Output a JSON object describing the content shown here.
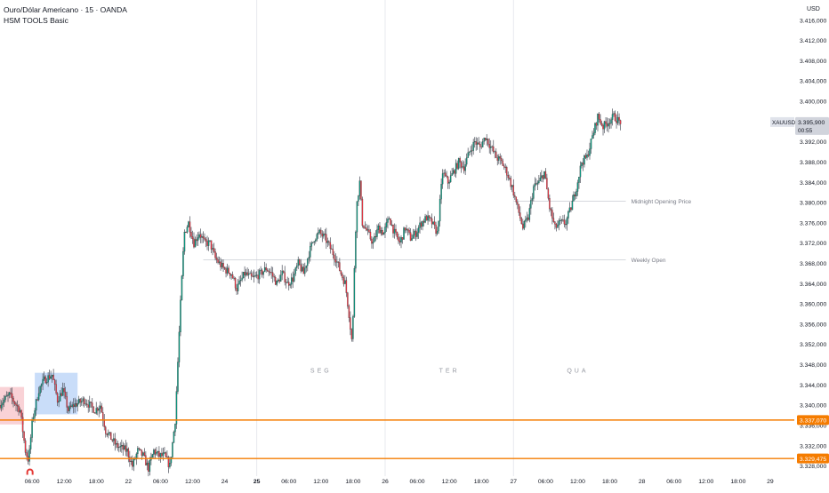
{
  "header": {
    "symbol_title": "Ouro/Dólar Americano · 15 · OANDA",
    "indicator": "HSM TOOLS Basic",
    "currency": "USD"
  },
  "price_tag": {
    "symbol": "XAUUSD",
    "price": "3.395,900",
    "countdown": "00:55"
  },
  "colors": {
    "up": "#089981",
    "down": "#f23645",
    "wick": "#4a4e59",
    "level_line": "#f57c00",
    "box_red": "#f8c7cc",
    "box_blue": "#bcd4f7",
    "grid_line": "#e7e9ee",
    "ref_line": "#c9ccd3",
    "signal_icon": "#e53935"
  },
  "chart_data": {
    "type": "candlestick",
    "symbol": "XAUUSD",
    "timeframe": "15",
    "ylim": [
      3326,
      3420
    ],
    "yticks": [
      {
        "value": 3328,
        "label": "3.328,000"
      },
      {
        "value": 3332,
        "label": "3.332,000"
      },
      {
        "value": 3336,
        "label": "3.336,000"
      },
      {
        "value": 3340,
        "label": "3.340,000"
      },
      {
        "value": 3344,
        "label": "3.344,000"
      },
      {
        "value": 3348,
        "label": "3.348,000"
      },
      {
        "value": 3352,
        "label": "3.352,000"
      },
      {
        "value": 3356,
        "label": "3.356,000"
      },
      {
        "value": 3360,
        "label": "3.360,000"
      },
      {
        "value": 3364,
        "label": "3.364,000"
      },
      {
        "value": 3368,
        "label": "3.368,000"
      },
      {
        "value": 3372,
        "label": "3.372,000"
      },
      {
        "value": 3376,
        "label": "3.376,000"
      },
      {
        "value": 3380,
        "label": "3.380,000"
      },
      {
        "value": 3384,
        "label": "3.384,000"
      },
      {
        "value": 3388,
        "label": "3.388,000"
      },
      {
        "value": 3392,
        "label": "3.392,000"
      },
      {
        "value": 3396,
        "label": "3.396,000"
      },
      {
        "value": 3400,
        "label": "3.400,000"
      },
      {
        "value": 3404,
        "label": "3.404,000"
      },
      {
        "value": 3408,
        "label": "3.408,000"
      },
      {
        "value": 3412,
        "label": "3.412,000"
      },
      {
        "value": 3416,
        "label": "3.416,000"
      }
    ],
    "time_axis": {
      "start": "21 00:00",
      "end": "29 06:00",
      "ticks": [
        {
          "t": 6,
          "label": "06:00",
          "bold": false
        },
        {
          "t": 12,
          "label": "12:00",
          "bold": false
        },
        {
          "t": 18,
          "label": "18:00",
          "bold": false
        },
        {
          "t": 24,
          "label": "22",
          "bold": false
        },
        {
          "t": 30,
          "label": "06:00",
          "bold": false
        },
        {
          "t": 36,
          "label": "12:00",
          "bold": false
        },
        {
          "t": 42,
          "label": "24",
          "bold": false
        },
        {
          "t": 48,
          "label": "25",
          "bold": true
        },
        {
          "t": 54,
          "label": "06:00",
          "bold": false
        },
        {
          "t": 60,
          "label": "12:00",
          "bold": false
        },
        {
          "t": 66,
          "label": "18:00",
          "bold": false
        },
        {
          "t": 72,
          "label": "26",
          "bold": false
        },
        {
          "t": 78,
          "label": "06:00",
          "bold": false
        },
        {
          "t": 84,
          "label": "12:00",
          "bold": false
        },
        {
          "t": 90,
          "label": "18:00",
          "bold": false
        },
        {
          "t": 96,
          "label": "27",
          "bold": false
        },
        {
          "t": 102,
          "label": "06:00",
          "bold": false
        },
        {
          "t": 108,
          "label": "12:00",
          "bold": false
        },
        {
          "t": 114,
          "label": "18:00",
          "bold": false
        },
        {
          "t": 120,
          "label": "28",
          "bold": false
        },
        {
          "t": 126,
          "label": "06:00",
          "bold": false
        },
        {
          "t": 132,
          "label": "12:00",
          "bold": false
        },
        {
          "t": 138,
          "label": "18:00",
          "bold": false
        },
        {
          "t": 144,
          "label": "29",
          "bold": false
        }
      ],
      "day_separators": [
        48,
        72,
        96
      ]
    },
    "day_labels": [
      {
        "t": 60,
        "label": "SEG",
        "price": 3347
      },
      {
        "t": 84,
        "label": "TER",
        "price": 3347
      },
      {
        "t": 108,
        "label": "QUA",
        "price": 3347
      }
    ],
    "price_path": [
      [
        0,
        3340
      ],
      [
        2,
        3342
      ],
      [
        4,
        3339
      ],
      [
        5,
        3331
      ],
      [
        5.6,
        3329
      ],
      [
        6.3,
        3337
      ],
      [
        7.5,
        3343
      ],
      [
        8.5,
        3345
      ],
      [
        10,
        3346
      ],
      [
        11,
        3341
      ],
      [
        12,
        3343
      ],
      [
        13,
        3339
      ],
      [
        14,
        3340
      ],
      [
        16,
        3341
      ],
      [
        18,
        3339
      ],
      [
        19,
        3340
      ],
      [
        20,
        3335
      ],
      [
        22,
        3332
      ],
      [
        24,
        3331
      ],
      [
        25,
        3328
      ],
      [
        26,
        3331
      ],
      [
        27,
        3330
      ],
      [
        28,
        3327.5
      ],
      [
        29,
        3331
      ],
      [
        30,
        3330
      ],
      [
        31,
        3330
      ],
      [
        32,
        3328
      ],
      [
        33,
        3337
      ],
      [
        34,
        3360
      ],
      [
        34.7,
        3374
      ],
      [
        35.5,
        3376
      ],
      [
        36.5,
        3372
      ],
      [
        37.5,
        3374
      ],
      [
        38.5,
        3372
      ],
      [
        39.5,
        3372
      ],
      [
        40.5,
        3369
      ],
      [
        42,
        3367
      ],
      [
        43.5,
        3366
      ],
      [
        44.5,
        3363
      ],
      [
        46,
        3366
      ],
      [
        47.5,
        3365
      ],
      [
        49,
        3366
      ],
      [
        50,
        3367
      ],
      [
        51,
        3366
      ],
      [
        52,
        3364
      ],
      [
        53,
        3366
      ],
      [
        54,
        3364
      ],
      [
        55,
        3365
      ],
      [
        56,
        3368
      ],
      [
        57,
        3366
      ],
      [
        58,
        3370
      ],
      [
        59,
        3373
      ],
      [
        60,
        3374
      ],
      [
        61,
        3373
      ],
      [
        62,
        3371
      ],
      [
        63,
        3369
      ],
      [
        64,
        3366
      ],
      [
        64.8,
        3364
      ],
      [
        65.5,
        3358
      ],
      [
        66,
        3353
      ],
      [
        66.3,
        3358
      ],
      [
        66.6,
        3372
      ],
      [
        67,
        3380
      ],
      [
        67.5,
        3384
      ],
      [
        68,
        3376
      ],
      [
        69,
        3374
      ],
      [
        70,
        3372
      ],
      [
        71,
        3375
      ],
      [
        72,
        3374
      ],
      [
        73,
        3377
      ],
      [
        74,
        3374
      ],
      [
        75,
        3372
      ],
      [
        76,
        3375
      ],
      [
        77,
        3373
      ],
      [
        78,
        3374
      ],
      [
        79,
        3376
      ],
      [
        80,
        3377
      ],
      [
        81,
        3376
      ],
      [
        82,
        3374
      ],
      [
        83,
        3386
      ],
      [
        84,
        3384
      ],
      [
        85,
        3386
      ],
      [
        86,
        3388
      ],
      [
        87,
        3387
      ],
      [
        88,
        3390
      ],
      [
        89,
        3392
      ],
      [
        90,
        3391
      ],
      [
        91,
        3393
      ],
      [
        92,
        3391
      ],
      [
        93,
        3389
      ],
      [
        94,
        3388
      ],
      [
        95,
        3386
      ],
      [
        96,
        3383
      ],
      [
        97,
        3379
      ],
      [
        98,
        3375
      ],
      [
        99,
        3377
      ],
      [
        100,
        3383
      ],
      [
        101,
        3384
      ],
      [
        102,
        3386
      ],
      [
        103,
        3379
      ],
      [
        104,
        3375
      ],
      [
        105,
        3376
      ],
      [
        106,
        3376
      ],
      [
        107,
        3379
      ],
      [
        108,
        3383
      ],
      [
        109,
        3388
      ],
      [
        110,
        3389
      ],
      [
        111,
        3393
      ],
      [
        112,
        3397
      ],
      [
        113,
        3395
      ],
      [
        114,
        3396
      ],
      [
        115,
        3397
      ],
      [
        116,
        3396
      ]
    ],
    "horizontal_levels": [
      {
        "price": 3337.07,
        "label": "3.337,070"
      },
      {
        "price": 3329.475,
        "label": "3.329,475"
      }
    ],
    "reference_lines": [
      {
        "name": "Midnight Opening Price",
        "price": 3380.3,
        "t_start": 96
      },
      {
        "name": "Weekly Open",
        "price": 3368.7,
        "t_start": 38
      }
    ],
    "session_boxes": [
      {
        "color": "red",
        "t0": 0,
        "t1": 4.5,
        "p_low": 3336.2,
        "p_high": 3343.6
      },
      {
        "color": "blue",
        "t0": 6.5,
        "t1": 14.5,
        "p_low": 3338.2,
        "p_high": 3346.4
      }
    ],
    "markers": [
      {
        "t": 5.6,
        "price": 3326.8,
        "shape": "signal-arc"
      }
    ],
    "grid": "vertical-day-separators-only",
    "legend": "top-left"
  }
}
